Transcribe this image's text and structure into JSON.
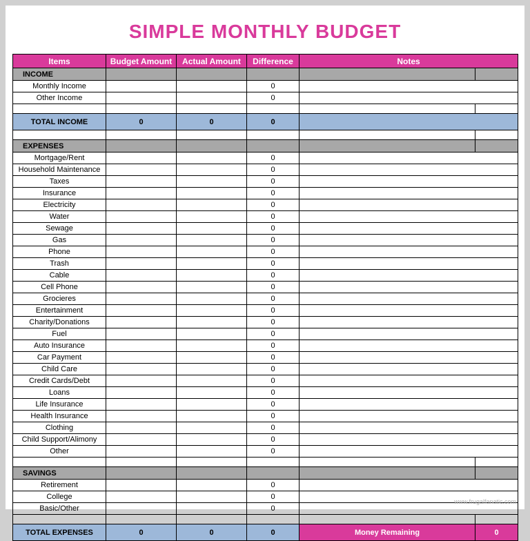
{
  "title": "SIMPLE MONTHLY BUDGET",
  "title_color": "#d93a9b",
  "colors": {
    "header_bg": "#d93a9b",
    "section_bg": "#a8a8a8",
    "total_bg": "#9db8d9",
    "money_remaining_bg": "#d93a9b",
    "border": "#000000",
    "page_bg": "#d0d0d0",
    "sheet_bg": "#ffffff"
  },
  "headers": {
    "items": "Items",
    "budget": "Budget Amount",
    "actual": "Actual Amount",
    "diff": "Difference",
    "notes": "Notes"
  },
  "sections": {
    "income": {
      "label": "INCOME",
      "rows": [
        {
          "label": "Monthly Income",
          "budget": "",
          "actual": "",
          "diff": "0",
          "notes": ""
        },
        {
          "label": "Other Income",
          "budget": "",
          "actual": "",
          "diff": "0",
          "notes": ""
        }
      ],
      "total": {
        "label": "TOTAL INCOME",
        "budget": "0",
        "actual": "0",
        "diff": "0",
        "notes": ""
      }
    },
    "expenses": {
      "label": "EXPENSES",
      "rows": [
        {
          "label": "Mortgage/Rent",
          "budget": "",
          "actual": "",
          "diff": "0",
          "notes": ""
        },
        {
          "label": "Household Maintenance",
          "budget": "",
          "actual": "",
          "diff": "0",
          "notes": ""
        },
        {
          "label": "Taxes",
          "budget": "",
          "actual": "",
          "diff": "0",
          "notes": ""
        },
        {
          "label": "Insurance",
          "budget": "",
          "actual": "",
          "diff": "0",
          "notes": ""
        },
        {
          "label": "Electricity",
          "budget": "",
          "actual": "",
          "diff": "0",
          "notes": ""
        },
        {
          "label": "Water",
          "budget": "",
          "actual": "",
          "diff": "0",
          "notes": ""
        },
        {
          "label": "Sewage",
          "budget": "",
          "actual": "",
          "diff": "0",
          "notes": ""
        },
        {
          "label": "Gas",
          "budget": "",
          "actual": "",
          "diff": "0",
          "notes": ""
        },
        {
          "label": "Phone",
          "budget": "",
          "actual": "",
          "diff": "0",
          "notes": ""
        },
        {
          "label": "Trash",
          "budget": "",
          "actual": "",
          "diff": "0",
          "notes": ""
        },
        {
          "label": "Cable",
          "budget": "",
          "actual": "",
          "diff": "0",
          "notes": ""
        },
        {
          "label": "Cell Phone",
          "budget": "",
          "actual": "",
          "diff": "0",
          "notes": ""
        },
        {
          "label": "Grocieres",
          "budget": "",
          "actual": "",
          "diff": "0",
          "notes": ""
        },
        {
          "label": "Entertainment",
          "budget": "",
          "actual": "",
          "diff": "0",
          "notes": ""
        },
        {
          "label": "Charity/Donations",
          "budget": "",
          "actual": "",
          "diff": "0",
          "notes": ""
        },
        {
          "label": "Fuel",
          "budget": "",
          "actual": "",
          "diff": "0",
          "notes": ""
        },
        {
          "label": "Auto Insurance",
          "budget": "",
          "actual": "",
          "diff": "0",
          "notes": ""
        },
        {
          "label": "Car Payment",
          "budget": "",
          "actual": "",
          "diff": "0",
          "notes": ""
        },
        {
          "label": "Child Care",
          "budget": "",
          "actual": "",
          "diff": "0",
          "notes": ""
        },
        {
          "label": "Credit Cards/Debt",
          "budget": "",
          "actual": "",
          "diff": "0",
          "notes": ""
        },
        {
          "label": "Loans",
          "budget": "",
          "actual": "",
          "diff": "0",
          "notes": ""
        },
        {
          "label": "Life Insurance",
          "budget": "",
          "actual": "",
          "diff": "0",
          "notes": ""
        },
        {
          "label": "Health Insurance",
          "budget": "",
          "actual": "",
          "diff": "0",
          "notes": ""
        },
        {
          "label": "Clothing",
          "budget": "",
          "actual": "",
          "diff": "0",
          "notes": ""
        },
        {
          "label": "Child Support/Alimony",
          "budget": "",
          "actual": "",
          "diff": "0",
          "notes": ""
        },
        {
          "label": "Other",
          "budget": "",
          "actual": "",
          "diff": "0",
          "notes": ""
        }
      ]
    },
    "savings": {
      "label": "SAVINGS",
      "rows": [
        {
          "label": "Retirement",
          "budget": "",
          "actual": "",
          "diff": "0",
          "notes": ""
        },
        {
          "label": "College",
          "budget": "",
          "actual": "",
          "diff": "0",
          "notes": ""
        },
        {
          "label": "Basic/Other",
          "budget": "",
          "actual": "",
          "diff": "0",
          "notes": ""
        }
      ]
    },
    "total_expenses": {
      "label": "TOTAL EXPENSES",
      "budget": "0",
      "actual": "0",
      "diff": "0",
      "money_remaining_label": "Money Remaining",
      "money_remaining_value": "0"
    }
  },
  "footer": "www.frugalfanatic.com"
}
